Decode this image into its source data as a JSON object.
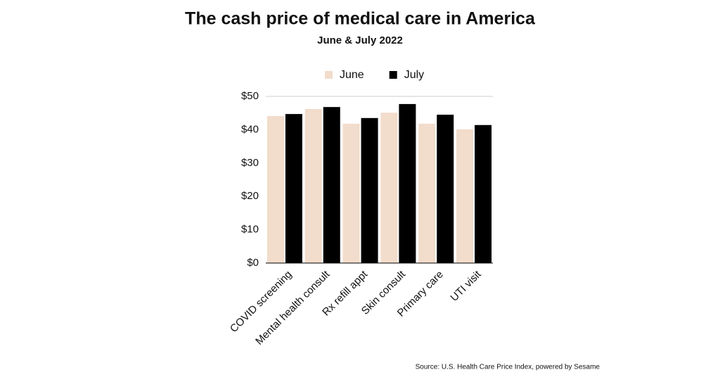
{
  "chart_data": {
    "type": "bar",
    "title": "The cash price of medical care in America",
    "subtitle": "June & July 2022",
    "source": "Source: U.S. Health Care Price Index, powered by Sesame",
    "categories": [
      "COVID screening",
      "Mental health consult",
      "Rx refill appt",
      "Skin consult",
      "Primary care",
      "UTI visit"
    ],
    "series": [
      {
        "name": "June",
        "color": "#f2dccb",
        "values": [
          44.1,
          46.2,
          41.8,
          45.1,
          41.8,
          40.1
        ]
      },
      {
        "name": "July",
        "color": "#000000",
        "values": [
          44.7,
          46.8,
          43.5,
          47.7,
          44.5,
          41.4
        ]
      }
    ],
    "ylim": [
      0,
      50
    ],
    "yticks": [
      {
        "value": 0,
        "label": "$0"
      },
      {
        "value": 10,
        "label": "$10"
      },
      {
        "value": 20,
        "label": "$20"
      },
      {
        "value": 30,
        "label": "$30"
      },
      {
        "value": 40,
        "label": "$40"
      },
      {
        "value": 50,
        "label": "$50"
      }
    ],
    "legend": "top"
  }
}
